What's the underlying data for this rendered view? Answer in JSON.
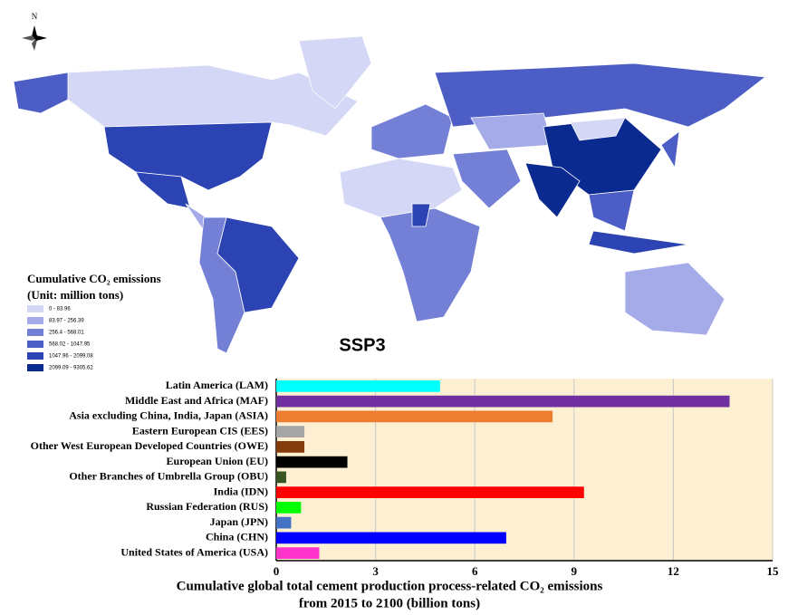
{
  "map": {
    "compass_label": "N",
    "title": "SSP3",
    "legend_title": [
      "Cumulative CO₂ emissions",
      "(Unit: million tons)"
    ],
    "classes": [
      {
        "label": "0 - 83.96",
        "color": "#d4d7f5"
      },
      {
        "label": "83.97 - 256.39",
        "color": "#a4abe8"
      },
      {
        "label": "256.4 - 568.01",
        "color": "#7480d6"
      },
      {
        "label": "568.02 - 1047.95",
        "color": "#4d5dc6"
      },
      {
        "label": "1047.96 - 2099.08",
        "color": "#2b43b3"
      },
      {
        "label": "2099.09 - 9305.62",
        "color": "#0a2a8f"
      }
    ]
  },
  "chart_data": {
    "type": "hbar",
    "categories": [
      "Latin America (LAM)",
      "Middle East and Africa (MAF)",
      "Asia excluding China, India, Japan (ASIA)",
      "Eastern European CIS (EES)",
      "Other West European Developed Countries (OWE)",
      "European Union (EU)",
      "Other Branches of Umbrella Group (OBU)",
      "India (IDN)",
      "Russian Federation (RUS)",
      "Japan (JPN)",
      "China (CHN)",
      "United States of America (USA)"
    ],
    "values": [
      4.95,
      13.7,
      8.35,
      0.85,
      0.85,
      2.15,
      0.3,
      9.3,
      0.75,
      0.45,
      6.95,
      1.3
    ],
    "colors": [
      "#00ffff",
      "#7030a0",
      "#ed7d31",
      "#a6a6a6",
      "#843c0c",
      "#000000",
      "#375623",
      "#ff0000",
      "#00ff00",
      "#4472c4",
      "#0000ff",
      "#ff33cc"
    ],
    "xlim": [
      0,
      15
    ],
    "xticks": [
      0,
      3,
      6,
      9,
      12,
      15
    ],
    "grid": true,
    "background": "#fcefd2",
    "x_label": [
      "Cumulative global total cement production process-related CO₂ emissions",
      "from 2015 to 2100 (billion tons)"
    ]
  }
}
